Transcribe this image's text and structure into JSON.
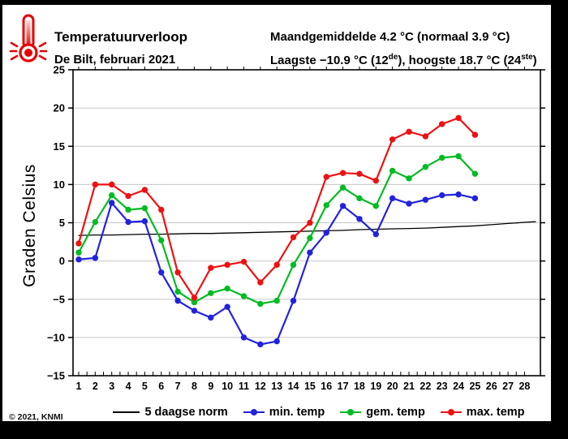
{
  "header": {
    "title": "Temperatuurverloop",
    "subtitle": "De Bilt, februari 2021",
    "stats_line1": "Maandgemiddelde 4.2 °C (normaal 3.9 °C)",
    "stats_line2": {
      "p1": "Laagste −10.9 °C (12",
      "sup1": "de",
      "p2": "), hoogste 18.7 °C (24",
      "sup2": "ste",
      "p3": ")"
    },
    "icon": "thermometer-icon"
  },
  "footer": {
    "copyright": "© 2021, KNMI"
  },
  "chart_data": {
    "type": "line",
    "title": "Temperatuurverloop De Bilt, februari 2021",
    "xlabel": "",
    "ylabel": "Graden Celsius",
    "ylim": [
      -15,
      25
    ],
    "xlim_days": [
      1,
      28
    ],
    "grid": "horizontal",
    "legend_position": "bottom",
    "ytick_values": [
      25,
      20,
      15,
      10,
      5,
      0,
      -5,
      -10,
      -15
    ],
    "ytick_labels": [
      "25",
      "20",
      "15",
      "10",
      "5",
      "0",
      "−5",
      "−10",
      "−15"
    ],
    "gridline_values": [
      20,
      15,
      10,
      5,
      0,
      -5,
      -10
    ],
    "x_days": [
      1,
      2,
      3,
      4,
      5,
      6,
      7,
      8,
      9,
      10,
      11,
      12,
      13,
      14,
      15,
      16,
      17,
      18,
      19,
      20,
      21,
      22,
      23,
      24,
      25,
      26,
      27,
      28
    ],
    "series": [
      {
        "name": "5 daagse norm",
        "color": "#000000",
        "marker": false,
        "extend_to_plot_edge": true,
        "x": [
          1,
          2,
          3,
          4,
          5,
          6,
          7,
          8,
          9,
          10,
          11,
          12,
          13,
          14,
          15,
          16,
          17,
          18,
          19,
          20,
          21,
          22,
          23,
          24,
          25,
          26,
          27,
          28
        ],
        "values": [
          3.35,
          3.4,
          3.4,
          3.45,
          3.5,
          3.5,
          3.55,
          3.6,
          3.6,
          3.65,
          3.7,
          3.75,
          3.8,
          3.85,
          3.9,
          3.95,
          4.0,
          4.1,
          4.15,
          4.2,
          4.25,
          4.3,
          4.4,
          4.5,
          4.6,
          4.75,
          4.9,
          5.05
        ]
      },
      {
        "name": "min. temp",
        "color": "#2222dd",
        "marker": true,
        "x": [
          1,
          2,
          3,
          4,
          5,
          6,
          7,
          8,
          9,
          10,
          11,
          12,
          13,
          14,
          15,
          16,
          17,
          18,
          19,
          20,
          21,
          22,
          23,
          24,
          25
        ],
        "values": [
          0.2,
          0.4,
          7.6,
          5.1,
          5.2,
          -1.5,
          -5.2,
          -6.5,
          -7.4,
          -6.0,
          -10.0,
          -10.9,
          -10.5,
          -5.2,
          1.1,
          3.7,
          7.2,
          5.5,
          3.5,
          8.2,
          7.5,
          8.0,
          8.6,
          8.7,
          8.2
        ]
      },
      {
        "name": "gem. temp",
        "color": "#00bb22",
        "marker": true,
        "x": [
          1,
          2,
          3,
          4,
          5,
          6,
          7,
          8,
          9,
          10,
          11,
          12,
          13,
          14,
          15,
          16,
          17,
          18,
          19,
          20,
          21,
          22,
          23,
          24,
          25
        ],
        "values": [
          1.1,
          5.1,
          8.6,
          6.7,
          6.9,
          2.7,
          -4.0,
          -5.4,
          -4.2,
          -3.6,
          -4.6,
          -5.6,
          -5.2,
          -0.5,
          3.0,
          7.3,
          9.6,
          8.2,
          7.2,
          11.8,
          10.8,
          12.3,
          13.5,
          13.7,
          11.4
        ]
      },
      {
        "name": "max. temp",
        "color": "#ee1111",
        "marker": true,
        "x": [
          1,
          2,
          3,
          4,
          5,
          6,
          7,
          8,
          9,
          10,
          11,
          12,
          13,
          14,
          15,
          16,
          17,
          18,
          19,
          20,
          21,
          22,
          23,
          24,
          25
        ],
        "values": [
          2.3,
          10.0,
          10.0,
          8.5,
          9.3,
          6.7,
          -1.5,
          -4.8,
          -0.9,
          -0.5,
          -0.1,
          -2.8,
          -0.5,
          3.1,
          5.0,
          11.0,
          11.5,
          11.4,
          10.5,
          15.9,
          16.9,
          16.3,
          17.9,
          18.7,
          16.5
        ]
      }
    ]
  }
}
